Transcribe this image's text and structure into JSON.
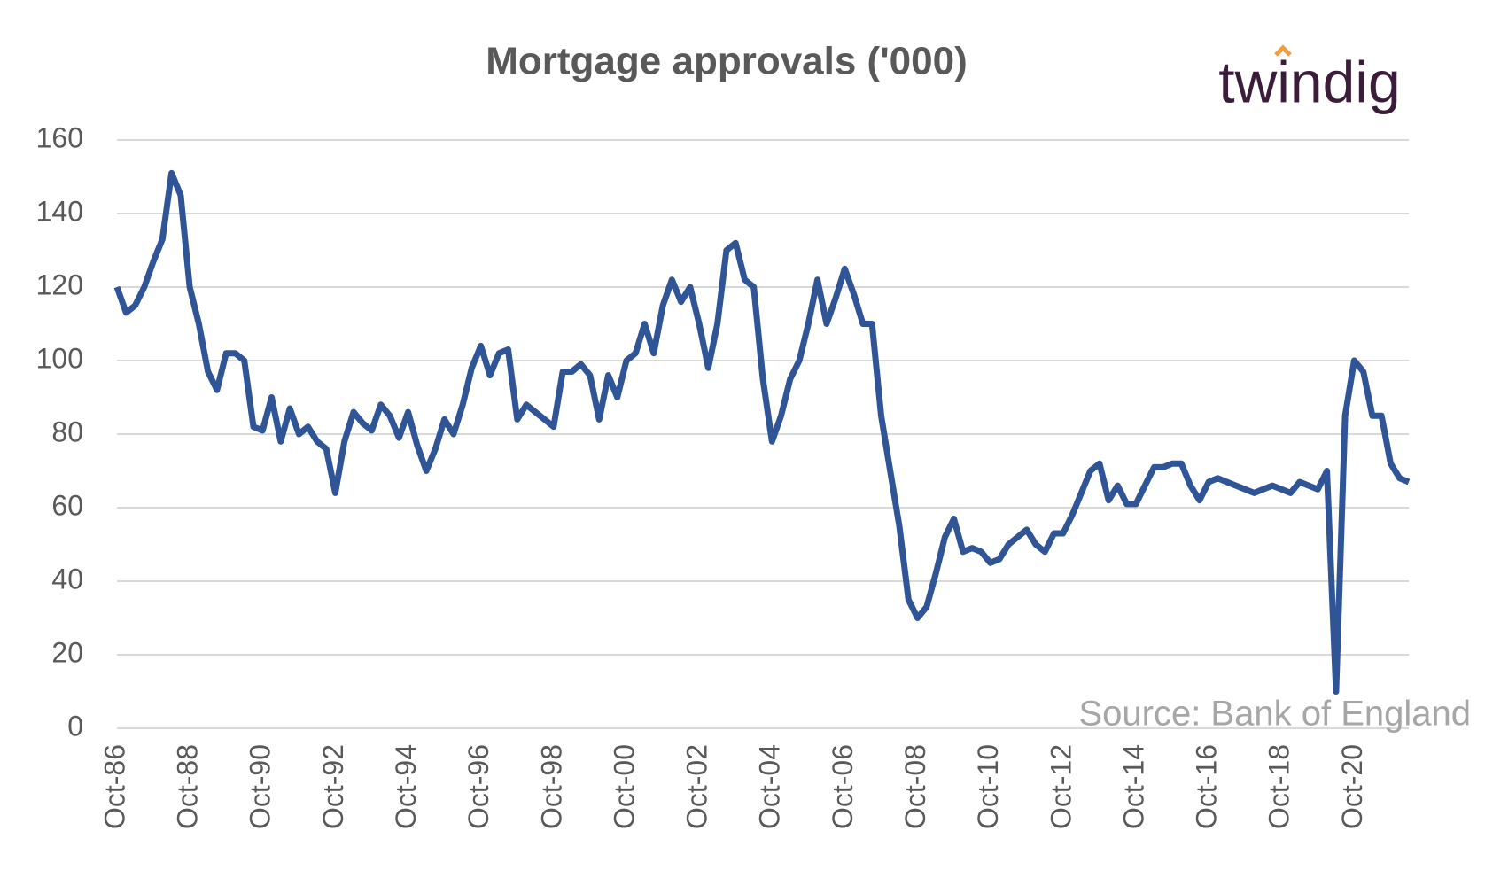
{
  "brand": "twindig",
  "chart_data": {
    "type": "line",
    "title": "Mortgage approvals ('000)",
    "source": "Source: Bank of England",
    "categories": [
      "Oct-86",
      null,
      null,
      null,
      null,
      null,
      null,
      null,
      "Oct-88",
      null,
      null,
      null,
      null,
      null,
      null,
      null,
      "Oct-90",
      null,
      null,
      null,
      null,
      null,
      null,
      null,
      "Oct-92",
      null,
      null,
      null,
      null,
      null,
      null,
      null,
      "Oct-94",
      null,
      null,
      null,
      null,
      null,
      null,
      null,
      "Oct-96",
      null,
      null,
      null,
      null,
      null,
      null,
      null,
      "Oct-98",
      null,
      null,
      null,
      null,
      null,
      null,
      null,
      "Oct-00",
      null,
      null,
      null,
      null,
      null,
      null,
      null,
      "Oct-02",
      null,
      null,
      null,
      null,
      null,
      null,
      null,
      "Oct-04",
      null,
      null,
      null,
      null,
      null,
      null,
      null,
      "Oct-06",
      null,
      null,
      null,
      null,
      null,
      null,
      null,
      "Oct-08",
      null,
      null,
      null,
      null,
      null,
      null,
      null,
      "Oct-10",
      null,
      null,
      null,
      null,
      null,
      null,
      null,
      "Oct-12",
      null,
      null,
      null,
      null,
      null,
      null,
      null,
      "Oct-14",
      null,
      null,
      null,
      null,
      null,
      null,
      null,
      "Oct-16",
      null,
      null,
      null,
      null,
      null,
      null,
      null,
      "Oct-18",
      null,
      null,
      null,
      null,
      null,
      null,
      null,
      "Oct-20",
      null,
      null,
      null,
      null,
      null,
      null
    ],
    "series": [
      {
        "name": "Mortgage approvals",
        "color": "#2f5597",
        "values": [
          120,
          113,
          115,
          120,
          127,
          133,
          151,
          145,
          120,
          110,
          97,
          92,
          102,
          102,
          100,
          82,
          81,
          90,
          78,
          87,
          80,
          82,
          78,
          76,
          64,
          78,
          86,
          83,
          81,
          88,
          85,
          79,
          86,
          77,
          70,
          76,
          84,
          80,
          88,
          98,
          104,
          96,
          102,
          103,
          84,
          88,
          86,
          84,
          82,
          97,
          97,
          99,
          96,
          84,
          96,
          90,
          100,
          102,
          110,
          102,
          115,
          122,
          116,
          120,
          110,
          98,
          110,
          130,
          132,
          122,
          120,
          95,
          78,
          85,
          95,
          100,
          110,
          122,
          110,
          117,
          125,
          118,
          110,
          110,
          85,
          70,
          55,
          35,
          30,
          33,
          42,
          52,
          57,
          48,
          49,
          48,
          45,
          46,
          50,
          52,
          54,
          50,
          48,
          53,
          53,
          58,
          64,
          70,
          72,
          62,
          66,
          61,
          61,
          66,
          71,
          71,
          72,
          72,
          66,
          62,
          67,
          68,
          67,
          66,
          65,
          64,
          65,
          66,
          65,
          64,
          67,
          66,
          65,
          70,
          10,
          85,
          100,
          97,
          85,
          85,
          72,
          68,
          67
        ]
      }
    ],
    "ylim": [
      0,
      160
    ],
    "yticks": [
      0,
      20,
      40,
      60,
      80,
      100,
      120,
      140,
      160
    ],
    "grid": true
  }
}
